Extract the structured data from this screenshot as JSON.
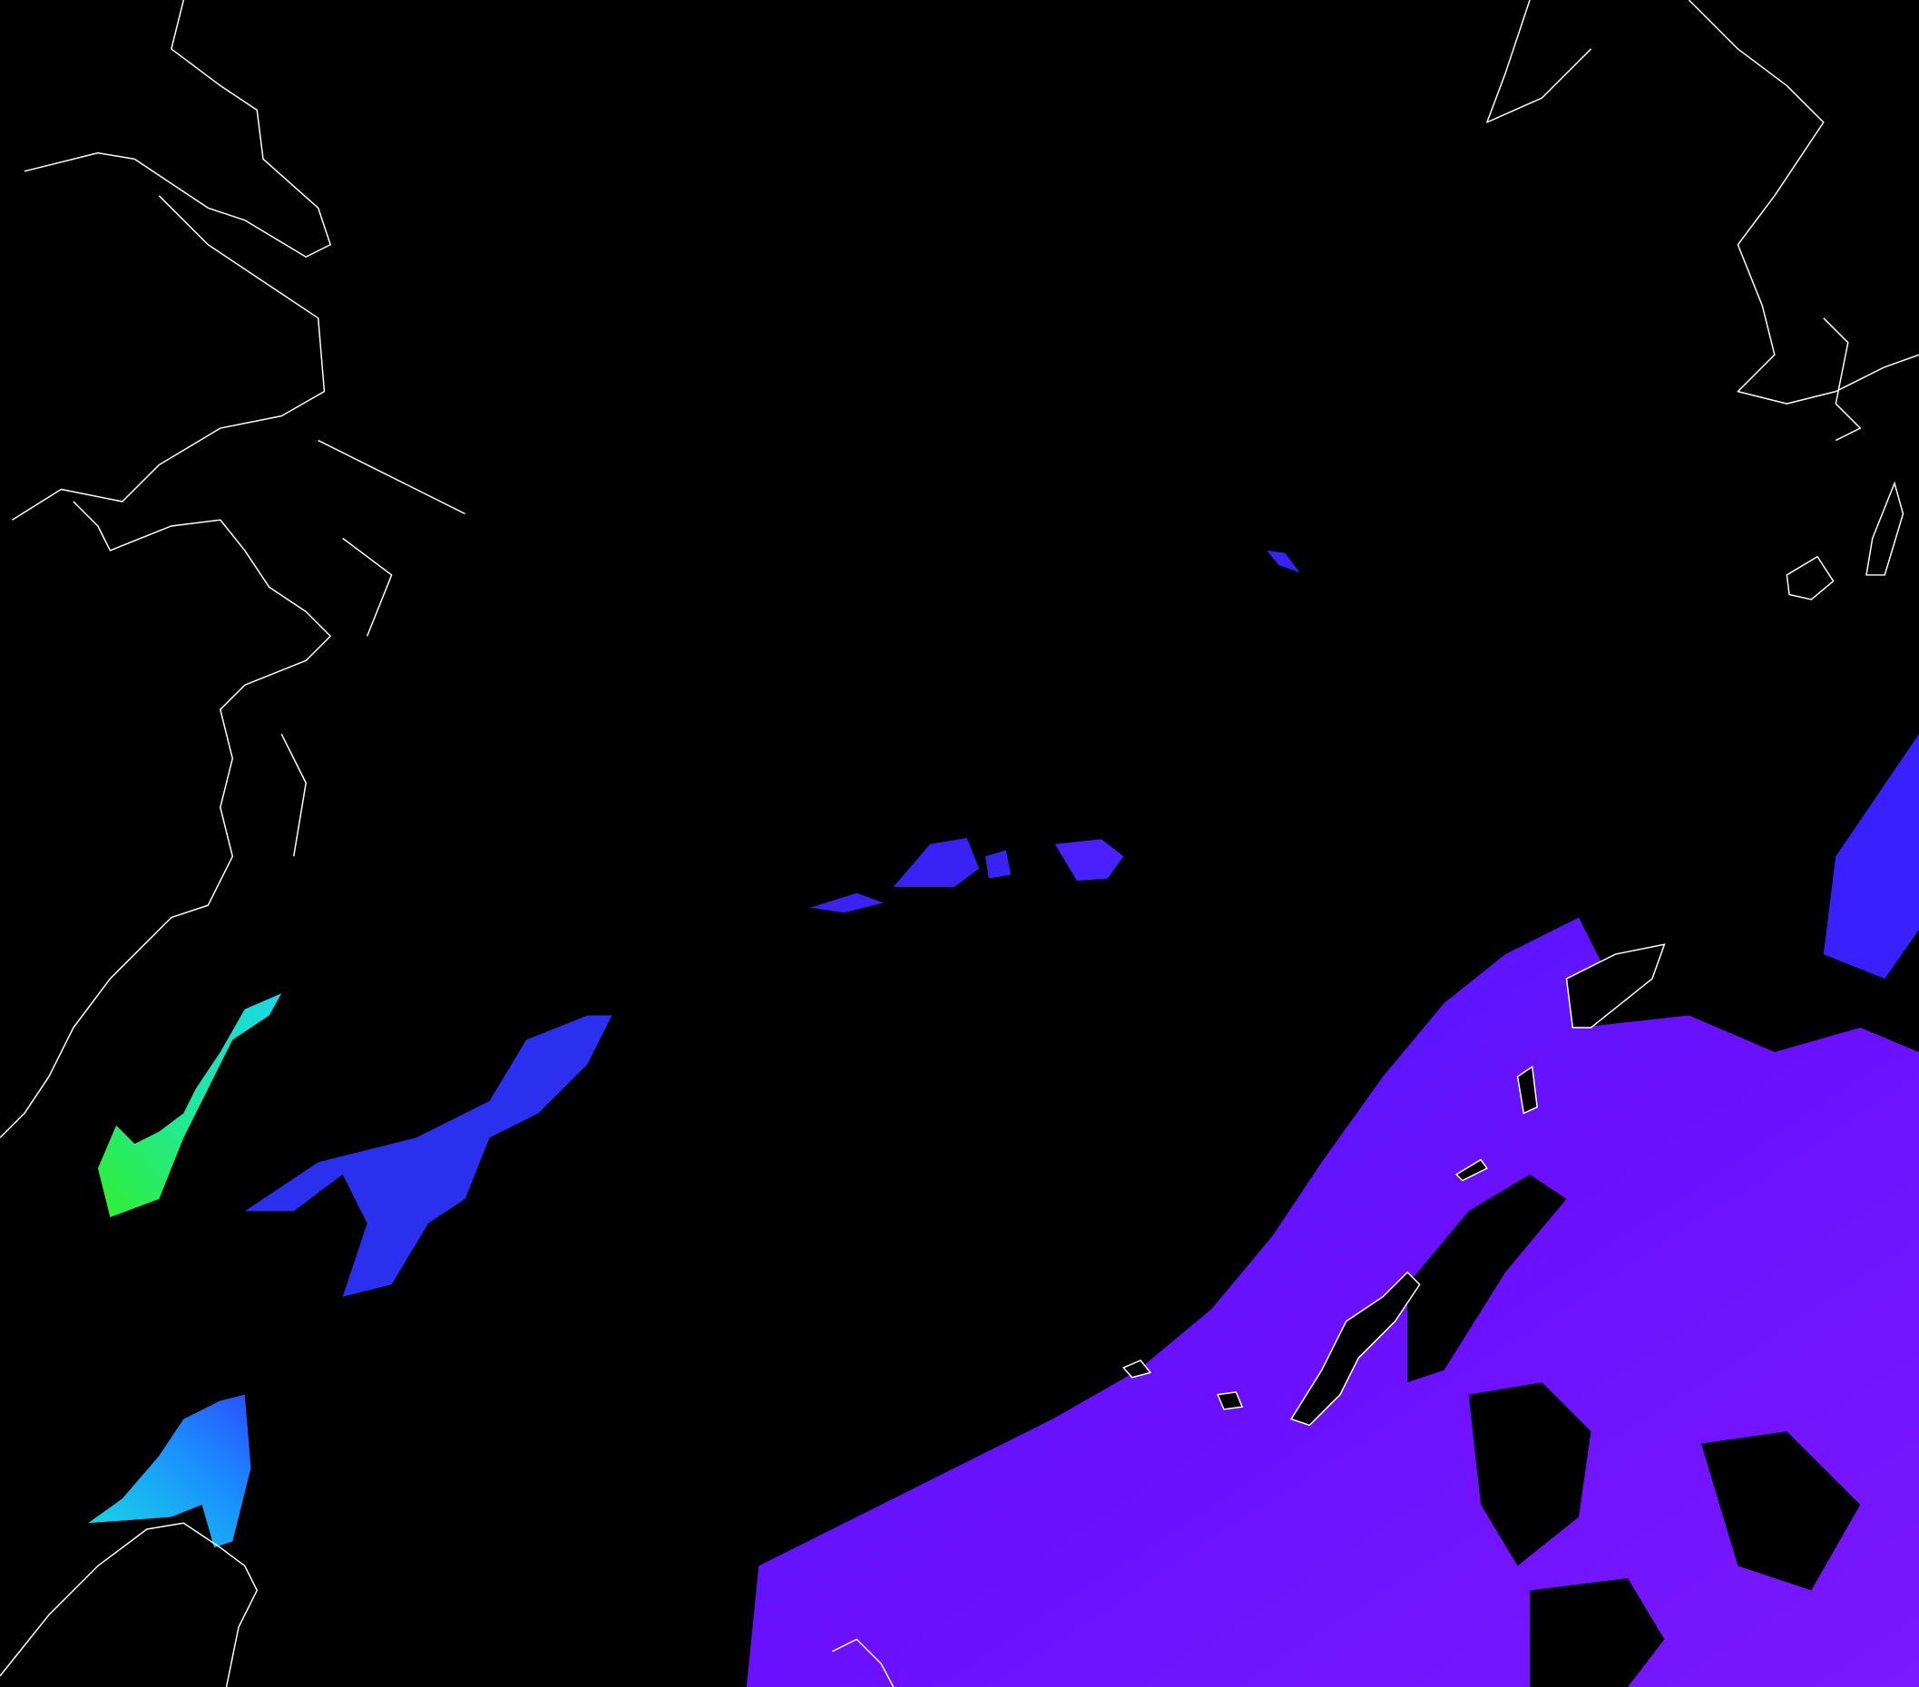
{
  "map": {
    "background_color": "#000000",
    "coastline_color": "#ffffff",
    "colors": {
      "purple": "#6a10ff",
      "violet": "#7a18ff",
      "blue": "#3a20ff",
      "deep_blue": "#2a22ee",
      "cyan": "#18d8e8",
      "green": "#30f030",
      "light_blue": "#1a90ff"
    },
    "layers": [
      "data-field",
      "coastlines"
    ],
    "features": [
      "china-coast",
      "japan-kyushu",
      "taiwan",
      "okinawa-islands"
    ]
  }
}
